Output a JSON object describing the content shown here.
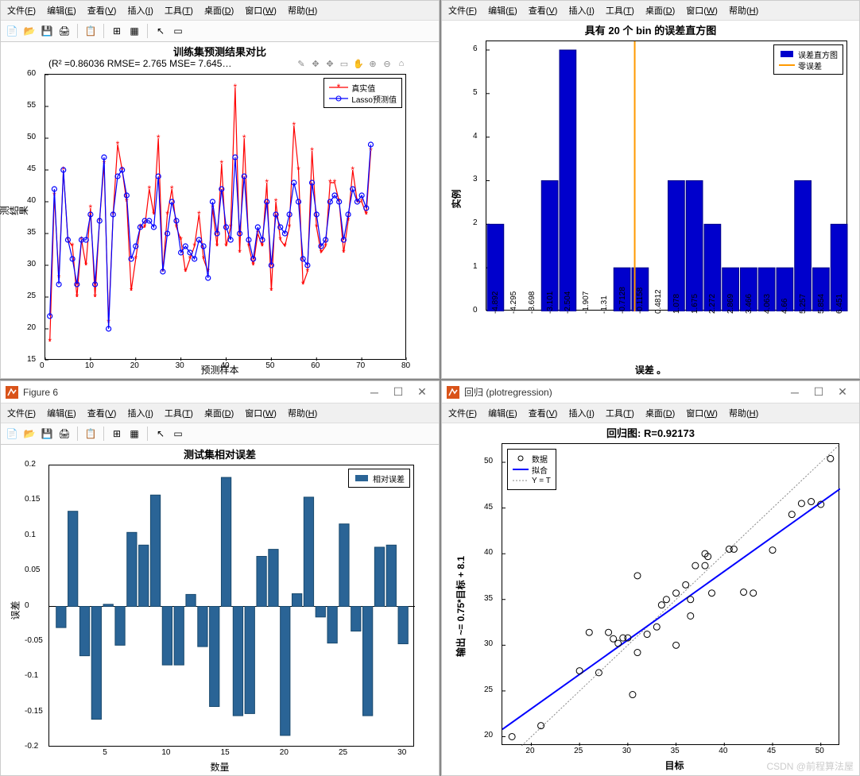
{
  "watermark": "CSDN @前程算法屋",
  "menus": [
    "文件(F)",
    "编辑(E)",
    "查看(V)",
    "插入(I)",
    "工具(T)",
    "桌面(D)",
    "窗口(W)",
    "帮助(H)"
  ],
  "toolbar_icons": [
    "new",
    "open",
    "save",
    "print",
    "|",
    "copy",
    "|",
    "layout",
    "grid",
    "|",
    "arrow",
    "inspect"
  ],
  "pane_tl": {
    "title": "训练集预测结果对比",
    "subtitle": "(R² =0.86036 RMSE= 2.765 MSE= 7.645…",
    "fig_icons": [
      "brush",
      "pan",
      "pan",
      "rect",
      "hand",
      "zoom-in",
      "zoom-out",
      "home"
    ],
    "xlabel": "预测样本",
    "ylabel": "预测结果",
    "xlim": [
      0,
      80
    ],
    "xticks": [
      0,
      10,
      20,
      30,
      40,
      50,
      60,
      70,
      80
    ],
    "ylim": [
      15,
      60
    ],
    "yticks": [
      15,
      20,
      25,
      30,
      35,
      40,
      45,
      50,
      55,
      60
    ],
    "legend": [
      {
        "label": "真实值",
        "color": "#ff0000",
        "marker": "*"
      },
      {
        "label": "Lasso预测值",
        "color": "#0000ff",
        "marker": "o"
      }
    ],
    "series_real_color": "#ff0000",
    "series_pred_color": "#0000ff",
    "x": [
      1,
      2,
      3,
      4,
      5,
      6,
      7,
      8,
      9,
      10,
      11,
      12,
      13,
      14,
      15,
      16,
      17,
      18,
      19,
      20,
      21,
      22,
      23,
      24,
      25,
      26,
      27,
      28,
      29,
      30,
      31,
      32,
      33,
      34,
      35,
      36,
      37,
      38,
      39,
      40,
      41,
      42,
      43,
      44,
      45,
      46,
      47,
      48,
      49,
      50,
      51,
      52,
      53,
      54,
      55,
      56,
      57,
      58,
      59,
      60,
      61,
      62,
      63,
      64,
      65,
      66,
      67,
      68,
      69,
      70,
      71,
      72
    ],
    "real": [
      18,
      41,
      28,
      45,
      34,
      33,
      25,
      34,
      30,
      39,
      25,
      37,
      46,
      21,
      38,
      49,
      45,
      40,
      26,
      31,
      36,
      36,
      42,
      38,
      50,
      29,
      38,
      42,
      36,
      34,
      29,
      31,
      33,
      38,
      31,
      29,
      39,
      33,
      46,
      33,
      36,
      58,
      32,
      50,
      33,
      30,
      35,
      33,
      43,
      26,
      40,
      34,
      33,
      36,
      52,
      45,
      27,
      29,
      48,
      36,
      32,
      33,
      43,
      43,
      40,
      32,
      37,
      45,
      40,
      40,
      38,
      48
    ],
    "pred": [
      22,
      42,
      27,
      45,
      34,
      31,
      27,
      34,
      34,
      38,
      27,
      37,
      47,
      20,
      38,
      44,
      45,
      41,
      31,
      33,
      36,
      37,
      37,
      36,
      44,
      29,
      35,
      40,
      37,
      32,
      33,
      32,
      31,
      34,
      33,
      28,
      40,
      35,
      42,
      36,
      34,
      47,
      35,
      44,
      34,
      31,
      36,
      34,
      40,
      30,
      38,
      36,
      35,
      38,
      43,
      40,
      31,
      30,
      43,
      38,
      33,
      34,
      40,
      41,
      40,
      34,
      38,
      42,
      40,
      41,
      39,
      49
    ]
  },
  "pane_tr": {
    "title": "具有 20 个 bin 的误差直方图",
    "xlabel": "误差 。",
    "ylabel": "实例",
    "ylim": [
      0,
      6.2
    ],
    "yticks": [
      0,
      1,
      2,
      3,
      4,
      5,
      6
    ],
    "bar_color": "#0000cc",
    "zero_line_color": "#ff9900",
    "legend": [
      {
        "label": "误差直方图",
        "color": "#0000cc",
        "type": "box"
      },
      {
        "label": "零误差",
        "color": "#ff9900",
        "type": "line"
      }
    ],
    "xlabels": [
      "-4.892",
      "-4.295",
      "-3.698",
      "-3.101",
      "-2.504",
      "-1.907",
      "-1.31",
      "-0.7128",
      "-0.1158",
      "0.4812",
      "1.078",
      "1.675",
      "2.272",
      "2.869",
      "3.466",
      "4.063",
      "4.66",
      "5.257",
      "5.854",
      "6.451"
    ],
    "values": [
      2,
      0,
      0,
      3,
      6,
      0,
      0,
      1,
      1,
      0,
      3,
      3,
      2,
      1,
      1,
      1,
      1,
      3,
      1,
      2
    ],
    "zero_index": 8.2
  },
  "pane_bl": {
    "window_title": "Figure 6",
    "title": "测试集相对误差",
    "xlabel": "数量",
    "ylabel": "误差",
    "xlim": [
      0,
      31
    ],
    "xticks": [
      5,
      10,
      15,
      20,
      25,
      30
    ],
    "ylim": [
      -0.2,
      0.2
    ],
    "yticks": [
      -0.2,
      -0.15,
      -0.1,
      -0.05,
      0,
      0.05,
      0.1,
      0.15,
      0.2
    ],
    "bar_color": "#2a6496",
    "legend": [
      {
        "label": "相对误差",
        "color": "#2a6496",
        "type": "box"
      }
    ],
    "values": [
      -0.03,
      0.135,
      -0.07,
      -0.16,
      0.003,
      -0.055,
      0.105,
      0.087,
      0.158,
      -0.083,
      -0.083,
      0.017,
      -0.057,
      -0.142,
      0.183,
      -0.155,
      -0.152,
      0.071,
      0.081,
      -0.183,
      0.018,
      0.155,
      -0.015,
      -0.052,
      0.117,
      -0.035,
      -0.155,
      0.084,
      0.087,
      -0.053
    ]
  },
  "pane_br": {
    "window_title": "回归 (plotregression)",
    "title": "回归图: R=0.92173",
    "xlabel": "目标",
    "ylabel": "输出 ~= 0.75*目标 + 8.1",
    "xlim": [
      17,
      52
    ],
    "xticks": [
      20,
      25,
      30,
      35,
      40,
      45,
      50
    ],
    "ylim": [
      19,
      52
    ],
    "yticks": [
      20,
      25,
      30,
      35,
      40,
      45,
      50
    ],
    "marker_edge": "#000",
    "marker_fill": "none",
    "fit_color": "#0000ff",
    "yt_color": "#888",
    "legend": [
      {
        "label": "数据",
        "type": "circle"
      },
      {
        "label": "拟合",
        "type": "blueline"
      },
      {
        "label": "Y = T",
        "type": "dotted"
      }
    ],
    "points": [
      [
        18,
        20
      ],
      [
        21,
        21.2
      ],
      [
        25,
        27.2
      ],
      [
        26,
        31.4
      ],
      [
        27,
        27
      ],
      [
        28,
        31.4
      ],
      [
        28.5,
        30.7
      ],
      [
        29,
        30.2
      ],
      [
        29.5,
        30.8
      ],
      [
        30,
        30.8
      ],
      [
        30.5,
        24.6
      ],
      [
        31,
        37.6
      ],
      [
        31,
        29.2
      ],
      [
        32,
        31.2
      ],
      [
        33.5,
        34.4
      ],
      [
        33,
        32
      ],
      [
        34,
        35
      ],
      [
        35,
        35.7
      ],
      [
        35,
        30
      ],
      [
        36,
        36.6
      ],
      [
        36.5,
        35
      ],
      [
        36.5,
        33.2
      ],
      [
        37,
        38.7
      ],
      [
        38,
        38.7
      ],
      [
        38,
        40
      ],
      [
        38.3,
        39.7
      ],
      [
        38.7,
        35.7
      ],
      [
        40.5,
        40.5
      ],
      [
        41,
        40.5
      ],
      [
        42,
        35.8
      ],
      [
        43,
        35.7
      ],
      [
        45,
        40.4
      ],
      [
        47,
        44.3
      ],
      [
        48,
        45.5
      ],
      [
        49,
        45.7
      ],
      [
        50,
        45.4
      ],
      [
        51,
        50.4
      ]
    ],
    "fit": [
      [
        17,
        20.8
      ],
      [
        52,
        47.1
      ]
    ],
    "yt": [
      [
        19,
        19
      ],
      [
        52,
        52
      ]
    ]
  }
}
